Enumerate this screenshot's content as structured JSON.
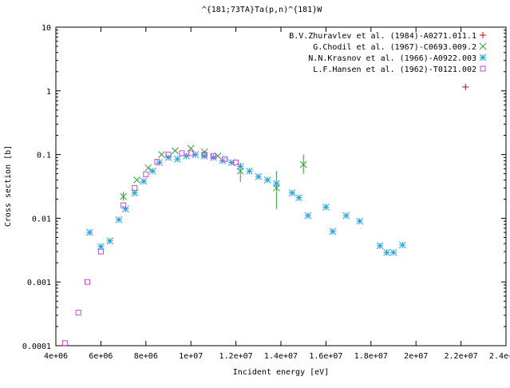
{
  "chart_data": {
    "type": "scatter",
    "title": "^{181;73TA}Ta(p,n)^{181}W",
    "xlabel": "Incident energy [eV]",
    "ylabel": "Cross section [b]",
    "xscale": "linear",
    "yscale": "log",
    "xlim": [
      4000000,
      24000000
    ],
    "ylim": [
      0.0001,
      10
    ],
    "x_ticks": [
      {
        "value": 4000000,
        "label": "4e+06"
      },
      {
        "value": 6000000,
        "label": "6e+06"
      },
      {
        "value": 8000000,
        "label": "8e+06"
      },
      {
        "value": 10000000,
        "label": "1e+07"
      },
      {
        "value": 12000000,
        "label": "1.2e+07"
      },
      {
        "value": 14000000,
        "label": "1.4e+07"
      },
      {
        "value": 16000000,
        "label": "1.6e+07"
      },
      {
        "value": 18000000,
        "label": "1.8e+07"
      },
      {
        "value": 20000000,
        "label": "2e+07"
      },
      {
        "value": 22000000,
        "label": "2.2e+07"
      },
      {
        "value": 24000000,
        "label": "2.4e+07"
      }
    ],
    "y_ticks": [
      {
        "value": 0.0001,
        "label": "0.0001"
      },
      {
        "value": 0.001,
        "label": "0.001"
      },
      {
        "value": 0.01,
        "label": "0.01"
      },
      {
        "value": 0.1,
        "label": "0.1"
      },
      {
        "value": 1,
        "label": "1"
      },
      {
        "value": 10,
        "label": "10"
      }
    ],
    "grid": false,
    "legend_position": "top-right",
    "series": [
      {
        "name": "B.V.Zhuravlev et al. (1984)-A0271.011.1",
        "marker": "plus",
        "color": "#cc0000",
        "points": [
          {
            "x": 22200000,
            "y": 1.15
          }
        ]
      },
      {
        "name": "G.Chodil et al. (1967)-C0693.009.2",
        "marker": "cross",
        "color": "#2ca02c",
        "points": [
          {
            "x": 7000000,
            "y": 0.022,
            "ylo": 0.019,
            "yhi": 0.026
          },
          {
            "x": 7600000,
            "y": 0.04
          },
          {
            "x": 8100000,
            "y": 0.062
          },
          {
            "x": 8700000,
            "y": 0.1
          },
          {
            "x": 9300000,
            "y": 0.115
          },
          {
            "x": 10000000,
            "y": 0.125
          },
          {
            "x": 10600000,
            "y": 0.11
          },
          {
            "x": 11200000,
            "y": 0.095
          },
          {
            "x": 12200000,
            "y": 0.055,
            "ylo": 0.037,
            "yhi": 0.075
          },
          {
            "x": 13800000,
            "y": 0.03,
            "ylo": 0.014,
            "yhi": 0.055
          },
          {
            "x": 15000000,
            "y": 0.07,
            "ylo": 0.05,
            "yhi": 0.1
          }
        ]
      },
      {
        "name": "N.N.Krasnov et al. (1966)-A0922.003",
        "marker": "star",
        "color": "#1f9fe0",
        "points": [
          {
            "x": 5500000,
            "y": 0.006
          },
          {
            "x": 6000000,
            "y": 0.0036
          },
          {
            "x": 6400000,
            "y": 0.0044
          },
          {
            "x": 6800000,
            "y": 0.0095
          },
          {
            "x": 7100000,
            "y": 0.014
          },
          {
            "x": 7500000,
            "y": 0.025
          },
          {
            "x": 7900000,
            "y": 0.038
          },
          {
            "x": 8300000,
            "y": 0.055
          },
          {
            "x": 8600000,
            "y": 0.075
          },
          {
            "x": 9000000,
            "y": 0.09
          },
          {
            "x": 9400000,
            "y": 0.085
          },
          {
            "x": 9800000,
            "y": 0.095
          },
          {
            "x": 10200000,
            "y": 0.1
          },
          {
            "x": 10600000,
            "y": 0.095
          },
          {
            "x": 11000000,
            "y": 0.09
          },
          {
            "x": 11400000,
            "y": 0.08
          },
          {
            "x": 11800000,
            "y": 0.075
          },
          {
            "x": 12200000,
            "y": 0.065
          },
          {
            "x": 12600000,
            "y": 0.055
          },
          {
            "x": 13000000,
            "y": 0.045
          },
          {
            "x": 13400000,
            "y": 0.04
          },
          {
            "x": 13800000,
            "y": 0.035
          },
          {
            "x": 14500000,
            "y": 0.025
          },
          {
            "x": 14800000,
            "y": 0.021
          },
          {
            "x": 15200000,
            "y": 0.011
          },
          {
            "x": 16000000,
            "y": 0.015
          },
          {
            "x": 16300000,
            "y": 0.0062
          },
          {
            "x": 16900000,
            "y": 0.011
          },
          {
            "x": 17500000,
            "y": 0.009
          },
          {
            "x": 18400000,
            "y": 0.0037
          },
          {
            "x": 18700000,
            "y": 0.0029
          },
          {
            "x": 19000000,
            "y": 0.0029
          },
          {
            "x": 19400000,
            "y": 0.0038
          }
        ]
      },
      {
        "name": "L.F.Hansen et al. (1962)-T0121.002",
        "marker": "box",
        "color": "#cc44cc",
        "points": [
          {
            "x": 4400000,
            "y": 0.00011
          },
          {
            "x": 5000000,
            "y": 0.00033
          },
          {
            "x": 5400000,
            "y": 0.001
          },
          {
            "x": 6000000,
            "y": 0.003
          },
          {
            "x": 7000000,
            "y": 0.016
          },
          {
            "x": 7500000,
            "y": 0.03
          },
          {
            "x": 8000000,
            "y": 0.049
          },
          {
            "x": 8500000,
            "y": 0.077
          },
          {
            "x": 9000000,
            "y": 0.1
          },
          {
            "x": 9600000,
            "y": 0.105
          },
          {
            "x": 10000000,
            "y": 0.105
          },
          {
            "x": 10600000,
            "y": 0.1
          },
          {
            "x": 11000000,
            "y": 0.095
          },
          {
            "x": 11500000,
            "y": 0.085
          },
          {
            "x": 12000000,
            "y": 0.075
          }
        ]
      }
    ]
  }
}
